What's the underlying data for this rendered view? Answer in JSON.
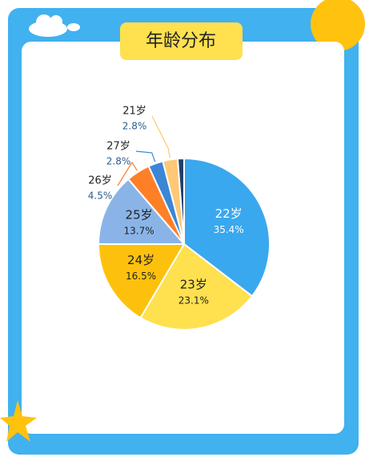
{
  "chart_data": {
    "type": "pie",
    "title": "年龄分布",
    "categories": [
      "22岁",
      "23岁",
      "24岁",
      "25岁",
      "26岁",
      "27岁",
      "21岁",
      null
    ],
    "values": [
      35.4,
      23.1,
      16.5,
      13.7,
      4.5,
      2.8,
      2.8,
      1.2
    ],
    "value_labels": [
      "35.4%",
      "23.1%",
      "16.5%",
      "13.7%",
      "4.5%",
      "2.8%",
      "2.8%",
      null
    ],
    "colors": [
      "#3aa8ee",
      "#ffe04f",
      "#fdc10d",
      "#8ab4e8",
      "#ff7f27",
      "#3b86d6",
      "#ffc874",
      "#1f3f6e"
    ]
  }
}
